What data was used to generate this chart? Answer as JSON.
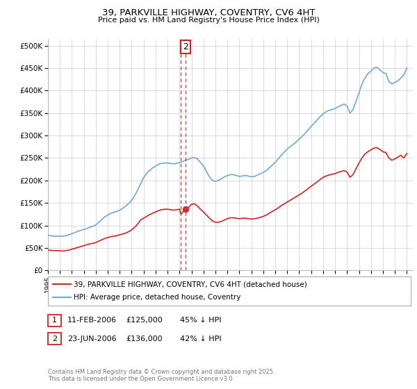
{
  "title": "39, PARKVILLE HIGHWAY, COVENTRY, CV6 4HT",
  "subtitle": "Price paid vs. HM Land Registry's House Price Index (HPI)",
  "ylabel_ticks": [
    "£0",
    "£50K",
    "£100K",
    "£150K",
    "£200K",
    "£250K",
    "£300K",
    "£350K",
    "£400K",
    "£450K",
    "£500K"
  ],
  "ytick_values": [
    0,
    50000,
    100000,
    150000,
    200000,
    250000,
    300000,
    350000,
    400000,
    450000,
    500000
  ],
  "ylim": [
    0,
    515000
  ],
  "xlim_start": 1995.0,
  "xlim_end": 2025.5,
  "hpi_color": "#6fa8d4",
  "price_color": "#cc2222",
  "dashed_line_color": "#cc2222",
  "background_color": "#ffffff",
  "grid_color": "#cccccc",
  "transaction1": {
    "date": "11-FEB-2006",
    "price": 125000,
    "label": "1",
    "x": 2006.12,
    "pct": "45%"
  },
  "transaction2": {
    "date": "23-JUN-2006",
    "price": 136000,
    "label": "2",
    "x": 2006.48,
    "pct": "42%"
  },
  "legend_label_red": "39, PARKVILLE HIGHWAY, COVENTRY, CV6 4HT (detached house)",
  "legend_label_blue": "HPI: Average price, detached house, Coventry",
  "footer": "Contains HM Land Registry data © Crown copyright and database right 2025.\nThis data is licensed under the Open Government Licence v3.0.",
  "hpi_data_x": [
    1995.0,
    1995.25,
    1995.5,
    1995.75,
    1996.0,
    1996.25,
    1996.5,
    1996.75,
    1997.0,
    1997.25,
    1997.5,
    1997.75,
    1998.0,
    1998.25,
    1998.5,
    1998.75,
    1999.0,
    1999.25,
    1999.5,
    1999.75,
    2000.0,
    2000.25,
    2000.5,
    2000.75,
    2001.0,
    2001.25,
    2001.5,
    2001.75,
    2002.0,
    2002.25,
    2002.5,
    2002.75,
    2003.0,
    2003.25,
    2003.5,
    2003.75,
    2004.0,
    2004.25,
    2004.5,
    2004.75,
    2005.0,
    2005.25,
    2005.5,
    2005.75,
    2006.0,
    2006.25,
    2006.5,
    2006.75,
    2007.0,
    2007.25,
    2007.5,
    2007.75,
    2008.0,
    2008.25,
    2008.5,
    2008.75,
    2009.0,
    2009.25,
    2009.5,
    2009.75,
    2010.0,
    2010.25,
    2010.5,
    2010.75,
    2011.0,
    2011.25,
    2011.5,
    2011.75,
    2012.0,
    2012.25,
    2012.5,
    2012.75,
    2013.0,
    2013.25,
    2013.5,
    2013.75,
    2014.0,
    2014.25,
    2014.5,
    2014.75,
    2015.0,
    2015.25,
    2015.5,
    2015.75,
    2016.0,
    2016.25,
    2016.5,
    2016.75,
    2017.0,
    2017.25,
    2017.5,
    2017.75,
    2018.0,
    2018.25,
    2018.5,
    2018.75,
    2019.0,
    2019.25,
    2019.5,
    2019.75,
    2020.0,
    2020.25,
    2020.5,
    2020.75,
    2021.0,
    2021.25,
    2021.5,
    2021.75,
    2022.0,
    2022.25,
    2022.5,
    2022.75,
    2023.0,
    2023.25,
    2023.5,
    2023.75,
    2024.0,
    2024.25,
    2024.5,
    2024.75,
    2025.0
  ],
  "hpi_data_y": [
    78000,
    77000,
    76000,
    76000,
    76000,
    76000,
    77000,
    79000,
    82000,
    84000,
    87000,
    89000,
    91000,
    93000,
    96000,
    98000,
    101000,
    107000,
    113000,
    119000,
    123000,
    127000,
    129000,
    131000,
    134000,
    138000,
    143000,
    149000,
    156000,
    166000,
    179000,
    193000,
    206000,
    216000,
    222000,
    228000,
    232000,
    236000,
    238000,
    239000,
    239000,
    238000,
    237000,
    238000,
    240000,
    242000,
    245000,
    247000,
    250000,
    251000,
    248000,
    240000,
    232000,
    220000,
    208000,
    200000,
    198000,
    200000,
    204000,
    208000,
    211000,
    213000,
    213000,
    211000,
    209000,
    210000,
    211000,
    210000,
    208000,
    209000,
    212000,
    215000,
    218000,
    222000,
    228000,
    234000,
    240000,
    248000,
    256000,
    263000,
    270000,
    275000,
    280000,
    286000,
    292000,
    298000,
    305000,
    312000,
    320000,
    327000,
    335000,
    342000,
    348000,
    353000,
    356000,
    358000,
    360000,
    364000,
    367000,
    370000,
    366000,
    350000,
    358000,
    376000,
    395000,
    415000,
    428000,
    438000,
    443000,
    450000,
    452000,
    446000,
    440000,
    438000,
    420000,
    415000,
    418000,
    422000,
    428000,
    435000,
    450000
  ],
  "price_data_x": [
    1995.0,
    1995.25,
    1995.5,
    1995.75,
    1996.0,
    1996.25,
    1996.5,
    1996.75,
    1997.0,
    1997.25,
    1997.5,
    1997.75,
    1998.0,
    1998.25,
    1998.5,
    1998.75,
    1999.0,
    1999.25,
    1999.5,
    1999.75,
    2000.0,
    2000.25,
    2000.5,
    2000.75,
    2001.0,
    2001.25,
    2001.5,
    2001.75,
    2002.0,
    2002.25,
    2002.5,
    2002.75,
    2003.0,
    2003.25,
    2003.5,
    2003.75,
    2004.0,
    2004.25,
    2004.5,
    2004.75,
    2005.0,
    2005.25,
    2005.5,
    2005.75,
    2006.0,
    2006.12,
    2006.48,
    2006.75,
    2007.0,
    2007.25,
    2007.5,
    2007.75,
    2008.0,
    2008.25,
    2008.5,
    2008.75,
    2009.0,
    2009.25,
    2009.5,
    2009.75,
    2010.0,
    2010.25,
    2010.5,
    2010.75,
    2011.0,
    2011.25,
    2011.5,
    2011.75,
    2012.0,
    2012.25,
    2012.5,
    2012.75,
    2013.0,
    2013.25,
    2013.5,
    2013.75,
    2014.0,
    2014.25,
    2014.5,
    2014.75,
    2015.0,
    2015.25,
    2015.5,
    2015.75,
    2016.0,
    2016.25,
    2016.5,
    2016.75,
    2017.0,
    2017.25,
    2017.5,
    2017.75,
    2018.0,
    2018.25,
    2018.5,
    2018.75,
    2019.0,
    2019.25,
    2019.5,
    2019.75,
    2020.0,
    2020.25,
    2020.5,
    2020.75,
    2021.0,
    2021.25,
    2021.5,
    2021.75,
    2022.0,
    2022.25,
    2022.5,
    2022.75,
    2023.0,
    2023.25,
    2023.5,
    2023.75,
    2024.0,
    2024.25,
    2024.5,
    2024.75,
    2025.0
  ],
  "price_data_y": [
    45000,
    44500,
    44000,
    44000,
    43500,
    43000,
    44000,
    45000,
    47000,
    49000,
    51000,
    53000,
    55000,
    57000,
    59000,
    60000,
    62000,
    65000,
    68000,
    71000,
    73000,
    75000,
    76000,
    77000,
    79000,
    81000,
    83000,
    86000,
    90000,
    96000,
    103000,
    112000,
    116000,
    120000,
    124000,
    127000,
    130000,
    133000,
    135000,
    136000,
    136000,
    135000,
    134000,
    135000,
    136000,
    125000,
    136000,
    140000,
    147000,
    148000,
    143000,
    136000,
    130000,
    123000,
    116000,
    110000,
    107000,
    107000,
    109000,
    112000,
    115000,
    117000,
    117000,
    116000,
    115000,
    116000,
    116000,
    115000,
    114000,
    115000,
    116000,
    118000,
    120000,
    123000,
    127000,
    131000,
    135000,
    139000,
    144000,
    148000,
    152000,
    156000,
    160000,
    164000,
    168000,
    172000,
    177000,
    182000,
    187000,
    192000,
    197000,
    202000,
    207000,
    210000,
    212000,
    214000,
    215000,
    218000,
    220000,
    222000,
    219000,
    207000,
    213000,
    226000,
    239000,
    250000,
    259000,
    264000,
    268000,
    272000,
    273000,
    269000,
    264000,
    262000,
    250000,
    245000,
    248000,
    252000,
    256000,
    250000,
    260000
  ]
}
